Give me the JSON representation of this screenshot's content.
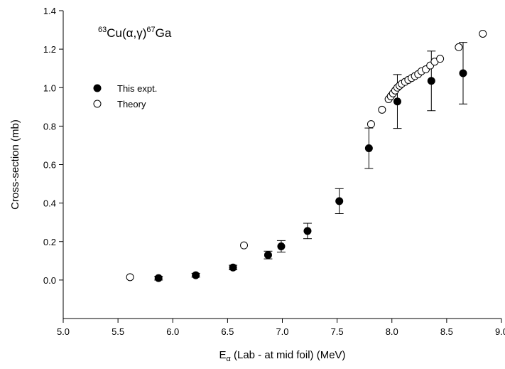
{
  "chart_data": {
    "type": "scatter",
    "annotation": [
      "63",
      "Cu(α,γ)",
      "67",
      "Ga"
    ],
    "xlabel": [
      "E",
      "α",
      " (Lab - at mid foil) (MeV)"
    ],
    "ylabel": "Cross-section (mb)",
    "xlim": [
      5.0,
      9.0
    ],
    "ylim": [
      -0.2,
      1.4
    ],
    "xticks": [
      {
        "value": 5.0,
        "label": "5.0"
      },
      5.5,
      {
        "value": 6.0,
        "label": "6.0"
      },
      6.5,
      {
        "value": 7.0,
        "label": "7.0"
      },
      7.5,
      {
        "value": 8.0,
        "label": "8.0"
      },
      8.5,
      {
        "value": 9.0,
        "label": "9.0"
      }
    ],
    "yticks": [
      {
        "value": 0,
        "label": "0.0"
      },
      0.2,
      0.4,
      0.6,
      0.8,
      {
        "value": 1.0,
        "label": "1.0"
      },
      1.2,
      1.4
    ],
    "legend": "upper left",
    "series": [
      {
        "name": "This expt.",
        "color": "#000000",
        "fill": "#000000",
        "x": [
          5.87,
          6.21,
          6.55,
          6.87,
          6.99,
          7.23,
          7.52,
          7.79,
          8.05,
          8.36,
          8.65
        ],
        "values": [
          0.01,
          0.025,
          0.065,
          0.13,
          0.175,
          0.255,
          0.41,
          0.685,
          0.928,
          1.035,
          1.075
        ],
        "errors": [
          0.01,
          0.01,
          0.012,
          0.02,
          0.03,
          0.04,
          0.065,
          0.105,
          0.14,
          0.155,
          0.16
        ]
      },
      {
        "name": "Theory",
        "color": "#000000",
        "fill": "#ffffff",
        "x": [
          5.61,
          6.65,
          7.81,
          7.91,
          7.97,
          7.99,
          8.01,
          8.03,
          8.05,
          8.07,
          8.09,
          8.12,
          8.15,
          8.18,
          8.21,
          8.24,
          8.27,
          8.31,
          8.35,
          8.39,
          8.44,
          8.61,
          8.83
        ],
        "values": [
          0.015,
          0.18,
          0.81,
          0.885,
          0.94,
          0.955,
          0.97,
          0.985,
          1.0,
          1.01,
          1.02,
          1.03,
          1.04,
          1.05,
          1.06,
          1.07,
          1.085,
          1.095,
          1.115,
          1.135,
          1.15,
          1.21,
          1.28
        ]
      }
    ]
  }
}
